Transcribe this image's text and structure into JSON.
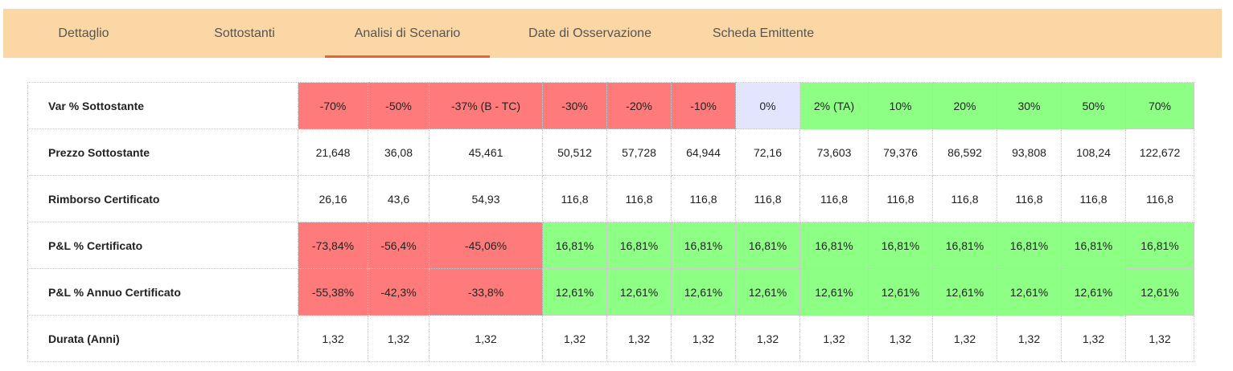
{
  "tabs": [
    {
      "label": "Dettaglio",
      "active": false
    },
    {
      "label": "Sottostanti",
      "active": false
    },
    {
      "label": "Analisi di Scenario",
      "active": true
    },
    {
      "label": "Date di Osservazione",
      "active": false
    },
    {
      "label": "Scheda Emittente",
      "active": false
    }
  ],
  "colors": {
    "tabbar_bg": "#fad7a4",
    "active_underline": "#e9642f",
    "negative": "#ff7b7b",
    "positive": "#8cff84",
    "neutral": "#e3e5ff"
  },
  "table": {
    "rows": [
      {
        "label": "Var % Sottostante",
        "cells": [
          "-70%",
          "-50%",
          "-37% (B - TC)",
          "-30%",
          "-20%",
          "-10%",
          "0%",
          "2% (TA)",
          "10%",
          "20%",
          "30%",
          "50%",
          "70%"
        ],
        "colors": [
          "red",
          "red",
          "red",
          "red",
          "red",
          "red",
          "blue",
          "green",
          "green",
          "green",
          "green",
          "green",
          "green"
        ]
      },
      {
        "label": "Prezzo Sottostante",
        "cells": [
          "21,648",
          "36,08",
          "45,461",
          "50,512",
          "57,728",
          "64,944",
          "72,16",
          "73,603",
          "79,376",
          "86,592",
          "93,808",
          "108,24",
          "122,672"
        ],
        "colors": [
          "",
          "",
          "",
          "",
          "",
          "",
          "",
          "",
          "",
          "",
          "",
          "",
          ""
        ]
      },
      {
        "label": "Rimborso Certificato",
        "cells": [
          "26,16",
          "43,6",
          "54,93",
          "116,8",
          "116,8",
          "116,8",
          "116,8",
          "116,8",
          "116,8",
          "116,8",
          "116,8",
          "116,8",
          "116,8"
        ],
        "colors": [
          "",
          "",
          "",
          "",
          "",
          "",
          "",
          "",
          "",
          "",
          "",
          "",
          ""
        ]
      },
      {
        "label": "P&L % Certificato",
        "cells": [
          "-73,84%",
          "-56,4%",
          "-45,06%",
          "16,81%",
          "16,81%",
          "16,81%",
          "16,81%",
          "16,81%",
          "16,81%",
          "16,81%",
          "16,81%",
          "16,81%",
          "16,81%"
        ],
        "colors": [
          "red",
          "red",
          "red",
          "green",
          "green",
          "green",
          "green",
          "green",
          "green",
          "green",
          "green",
          "green",
          "green"
        ]
      },
      {
        "label": "P&L % Annuo Certificato",
        "cells": [
          "-55,38%",
          "-42,3%",
          "-33,8%",
          "12,61%",
          "12,61%",
          "12,61%",
          "12,61%",
          "12,61%",
          "12,61%",
          "12,61%",
          "12,61%",
          "12,61%",
          "12,61%"
        ],
        "colors": [
          "red",
          "red",
          "red",
          "green",
          "green",
          "green",
          "green",
          "green",
          "green",
          "green",
          "green",
          "green",
          "green"
        ]
      },
      {
        "label": "Durata (Anni)",
        "cells": [
          "1,32",
          "1,32",
          "1,32",
          "1,32",
          "1,32",
          "1,32",
          "1,32",
          "1,32",
          "1,32",
          "1,32",
          "1,32",
          "1,32",
          "1,32"
        ],
        "colors": [
          "",
          "",
          "",
          "",
          "",
          "",
          "",
          "",
          "",
          "",
          "",
          "",
          ""
        ]
      }
    ]
  }
}
